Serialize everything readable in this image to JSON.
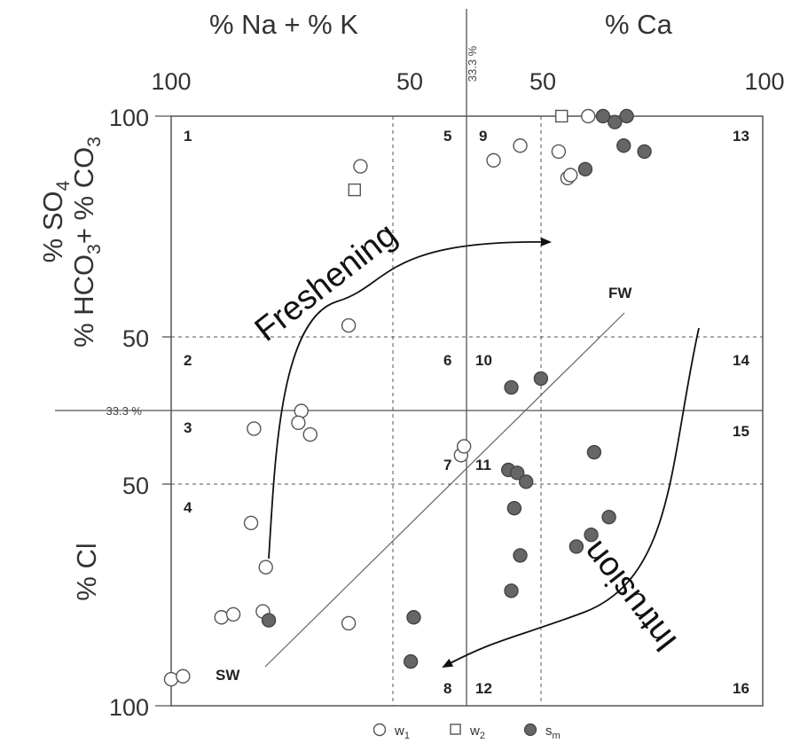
{
  "header": {
    "left_label": "% Na + % K",
    "right_label": "% Ca"
  },
  "chart_data": {
    "type": "scatter",
    "title": "",
    "top_axis": {
      "left_ticks": [
        "100",
        "50"
      ],
      "right_ticks": [
        "50",
        "100"
      ],
      "divider_label": "33.3 %"
    },
    "left_axis": {
      "upper_label": "% SO₄ % HCO₃+ % CO₃",
      "lower_label": "% Cl",
      "upper_ticks": [
        "100",
        "50"
      ],
      "lower_ticks": [
        "50",
        "100"
      ],
      "divider_label": "33.3 %"
    },
    "zones": [
      "1",
      "2",
      "3",
      "4",
      "5",
      "6",
      "7",
      "8",
      "9",
      "10",
      "11",
      "12",
      "13",
      "14",
      "15",
      "16"
    ],
    "end_members": {
      "seawater": "SW",
      "freshwater": "FW"
    },
    "processes": [
      "Freshening",
      "Intrusion"
    ],
    "mixing_line": {
      "from": "SW",
      "to": "FW"
    },
    "legend": [
      {
        "name": "w1",
        "symbol": "open-circle"
      },
      {
        "name": "w2",
        "symbol": "open-square"
      },
      {
        "name": "sm",
        "symbol": "filled-circle"
      }
    ],
    "x_range": [
      -100,
      100
    ],
    "y_range": [
      -100,
      100
    ],
    "grid": "dashed at 50, solid at 33.3 %",
    "series": [
      {
        "name": "w1",
        "points": [
          [
            -100,
            -91
          ],
          [
            -96,
            -90
          ],
          [
            -83,
            -70
          ],
          [
            -79,
            -69
          ],
          [
            -68,
            -53
          ],
          [
            -69,
            -68
          ],
          [
            -73,
            -38
          ],
          [
            -72,
            -6
          ],
          [
            -56,
            0
          ],
          [
            -57,
            -4
          ],
          [
            -53,
            -8
          ],
          [
            -2,
            -15
          ],
          [
            -40,
            -72
          ],
          [
            -40,
            29
          ],
          [
            -1,
            -12
          ],
          [
            9,
            85
          ],
          [
            41,
            100
          ],
          [
            34,
            79
          ],
          [
            35,
            80
          ],
          [
            18,
            90
          ],
          [
            31,
            88
          ],
          [
            -36,
            83
          ]
        ]
      },
      {
        "name": "w2",
        "points": [
          [
            -38,
            75
          ],
          [
            32,
            100
          ]
        ]
      },
      {
        "name": "sm",
        "points": [
          [
            -67,
            -71
          ],
          [
            -18,
            -70
          ],
          [
            -19,
            -85
          ],
          [
            15,
            8
          ],
          [
            25,
            11
          ],
          [
            14,
            -20
          ],
          [
            17,
            -21
          ],
          [
            20,
            -24
          ],
          [
            16,
            -33
          ],
          [
            18,
            -49
          ],
          [
            15,
            -61
          ],
          [
            43,
            -14
          ],
          [
            37,
            -46
          ],
          [
            42,
            -42
          ],
          [
            48,
            -36
          ],
          [
            50,
            98
          ],
          [
            54,
            100
          ],
          [
            53,
            90
          ],
          [
            60,
            88
          ],
          [
            46,
            100
          ],
          [
            40,
            82
          ]
        ]
      }
    ]
  }
}
